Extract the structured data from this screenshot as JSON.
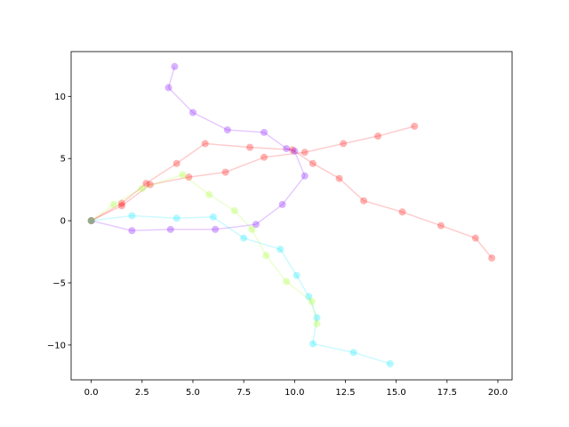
{
  "chart_data": {
    "type": "line",
    "xlim": [
      -0.99,
      20.7
    ],
    "ylim": [
      -12.8,
      13.6
    ],
    "xticks": [
      {
        "value": 0,
        "label": "0.0"
      },
      2.5,
      {
        "value": 5,
        "label": "5.0"
      },
      7.5,
      {
        "value": 10,
        "label": "10.0"
      },
      12.5,
      {
        "value": 15,
        "label": "15.0"
      },
      17.5,
      {
        "value": 20,
        "label": "20.0"
      }
    ],
    "yticks": [
      {
        "value": -10,
        "label": "−10"
      },
      {
        "value": -5,
        "label": "−5"
      },
      0,
      5,
      10
    ],
    "series": [
      {
        "color": "#ff0000",
        "x": [
          0,
          1.5,
          2.7,
          4.2,
          5.6,
          7.8,
          9.9,
          10.9,
          12.2,
          13.4,
          15.3,
          17.2,
          18.9,
          19.7
        ],
        "values": [
          0,
          1.4,
          3.0,
          4.6,
          6.2,
          5.9,
          5.7,
          4.6,
          3.4,
          1.6,
          0.7,
          -0.4,
          -1.4,
          -3.0
        ]
      },
      {
        "color": "#ff0000",
        "x": [
          0,
          1.5,
          2.9,
          4.8,
          6.6,
          8.5,
          10.5,
          12.4,
          14.1,
          15.9
        ],
        "values": [
          0,
          1.2,
          2.9,
          3.5,
          3.9,
          5.1,
          5.5,
          6.2,
          6.8,
          7.6
        ]
      },
      {
        "color": "#8000ff",
        "x": [
          0,
          2.0,
          3.9,
          6.1,
          8.1,
          9.4,
          10.5,
          10.0,
          9.6,
          8.5,
          6.7,
          5.0,
          3.8,
          4.1
        ],
        "values": [
          0,
          -0.8,
          -0.7,
          -0.7,
          -0.3,
          1.3,
          3.6,
          5.6,
          5.8,
          7.1,
          7.3,
          8.7,
          10.7,
          12.4
        ]
      },
      {
        "color": "#00e8ff",
        "x": [
          0,
          2.0,
          4.2,
          6.0,
          7.5,
          9.3,
          10.1,
          10.7,
          11.1,
          10.9,
          12.9,
          14.7
        ],
        "values": [
          0,
          0.4,
          0.2,
          0.3,
          -1.4,
          -2.3,
          -4.4,
          -6.1,
          -7.8,
          -9.9,
          -10.6,
          -11.5
        ]
      },
      {
        "color": "#a0ff20",
        "x": [
          0,
          1.1,
          2.5,
          4.5,
          5.8,
          7.05,
          7.9,
          8.6,
          9.6,
          10.85,
          11.1
        ],
        "values": [
          0,
          1.3,
          2.6,
          3.7,
          2.1,
          0.8,
          -0.7,
          -2.8,
          -4.9,
          -6.5,
          -8.3
        ]
      }
    ]
  }
}
